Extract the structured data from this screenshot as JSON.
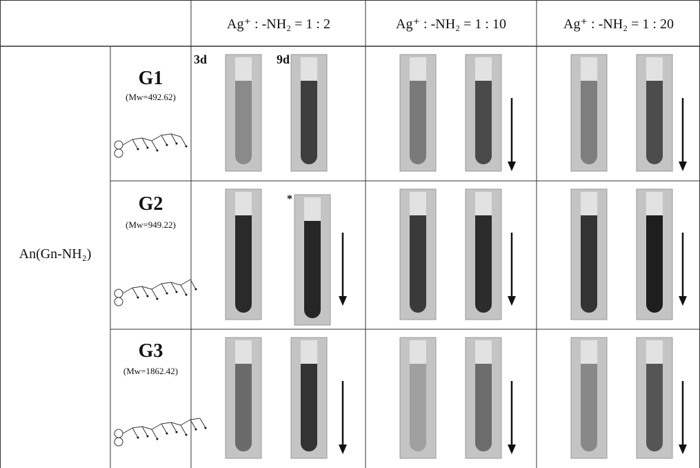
{
  "header": {
    "columns": [
      "Ag⁺ : -NH₂ = 1 : 2",
      "Ag⁺ : -NH₂ = 1 : 10",
      "Ag⁺ : -NH₂ = 1 : 20"
    ]
  },
  "row_group": "An(Gn-NH₂)",
  "rows": [
    {
      "name": "G1",
      "mw": "(Mw=492.62)"
    },
    {
      "name": "G2",
      "mw": "(Mw=949.22)"
    },
    {
      "name": "G3",
      "mw": "(Mw=1862.42)"
    }
  ],
  "annotations": {
    "first": "3d",
    "second": "9d",
    "mark": "*"
  }
}
